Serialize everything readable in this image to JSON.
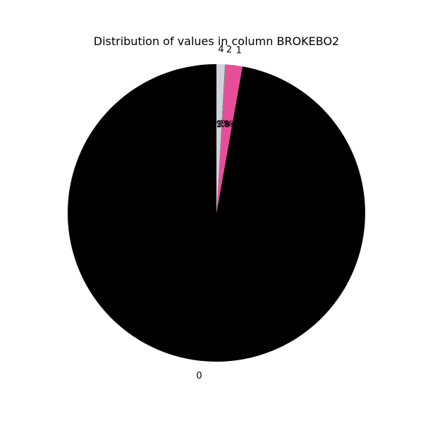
{
  "chart_data": {
    "type": "pie",
    "title": "Distribution of values in column BROKEBO2",
    "categories": [
      "0",
      "1",
      "2",
      "4"
    ],
    "values": [
      97.2,
      1.8,
      0.1,
      0.9
    ],
    "percent_labels": [
      "97.2%",
      "1.8%",
      "0.1%",
      "0.9%"
    ],
    "colors": [
      "#000000",
      "#e84d9a",
      "#7a7a7a",
      "#d0d3da"
    ],
    "start_angle_deg": 90,
    "direction": "counterclockwise"
  }
}
